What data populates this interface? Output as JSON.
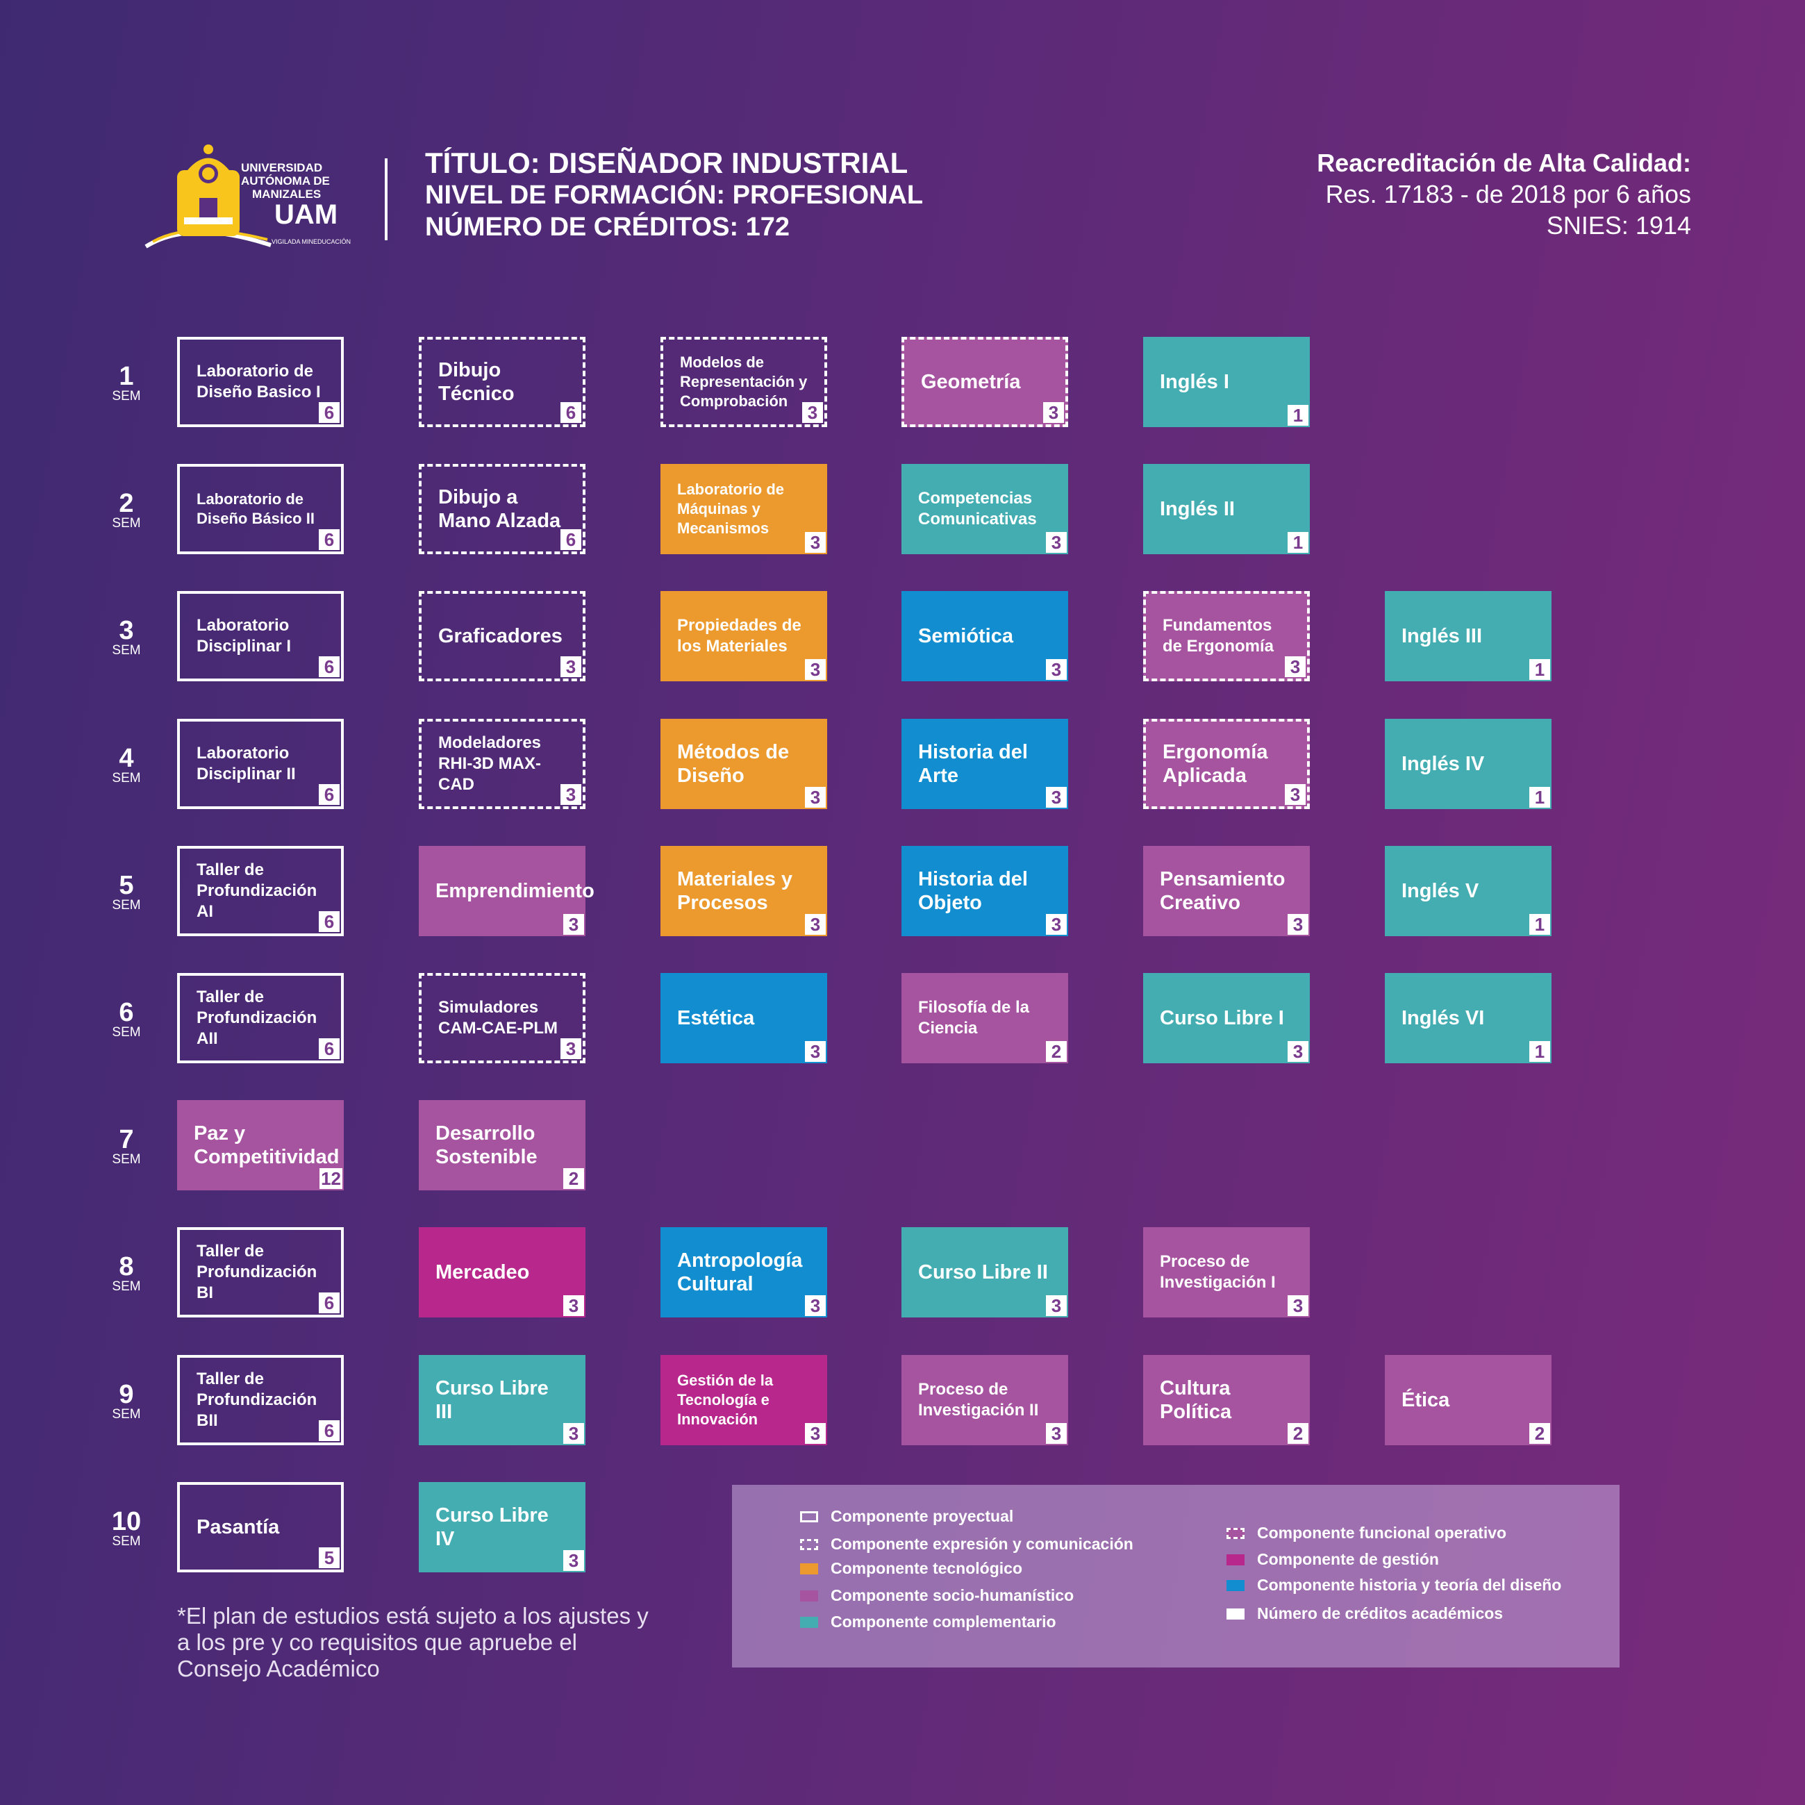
{
  "header": {
    "logo_lines": [
      "UNIVERSIDAD",
      "AUTÓNOMA DE",
      "MANIZALES",
      "UAM",
      "VIGILADA MINEDUCACIÓN"
    ],
    "title": "TÍTULO: DISEÑADOR INDUSTRIAL",
    "level": "NIVEL DE FORMACIÓN: PROFESIONAL",
    "credits": "NÚMERO DE CRÉDITOS: 172",
    "accreditation": "Reacreditación de Alta Calidad:",
    "resolution": "Res. 17183 - de 2018 por 6 años",
    "snies": "SNIES: 1914"
  },
  "sem_suffix": "SEM",
  "semesters": [
    "1",
    "2",
    "3",
    "4",
    "5",
    "6",
    "7",
    "8",
    "9",
    "10"
  ],
  "courses": [
    {
      "sem": 1,
      "col": 0,
      "name": "Laboratorio de Diseño Basico I",
      "credits": "6",
      "type": "proyectual"
    },
    {
      "sem": 1,
      "col": 1,
      "name": "Dibujo Técnico",
      "credits": "6",
      "type": "expresion"
    },
    {
      "sem": 1,
      "col": 2,
      "name": "Modelos de Representación y Comprobación",
      "credits": "3",
      "type": "expresion"
    },
    {
      "sem": 1,
      "col": 3,
      "name": "Geometría",
      "credits": "3",
      "type": "funcional"
    },
    {
      "sem": 1,
      "col": 4,
      "name": "Inglés I",
      "credits": "1",
      "type": "complementario"
    },
    {
      "sem": 2,
      "col": 0,
      "name": "Laboratorio de Diseño Básico II",
      "credits": "6",
      "type": "proyectual"
    },
    {
      "sem": 2,
      "col": 1,
      "name": "Dibujo a Mano Alzada",
      "credits": "6",
      "type": "expresion"
    },
    {
      "sem": 2,
      "col": 2,
      "name": "Laboratorio de Máquinas y Mecanismos",
      "credits": "3",
      "type": "tecnologico"
    },
    {
      "sem": 2,
      "col": 3,
      "name": "Competencias Comunicativas",
      "credits": "3",
      "type": "complementario"
    },
    {
      "sem": 2,
      "col": 4,
      "name": "Inglés II",
      "credits": "1",
      "type": "complementario"
    },
    {
      "sem": 3,
      "col": 0,
      "name": "Laboratorio Disciplinar I",
      "credits": "6",
      "type": "proyectual"
    },
    {
      "sem": 3,
      "col": 1,
      "name": "Graficadores",
      "credits": "3",
      "type": "expresion"
    },
    {
      "sem": 3,
      "col": 2,
      "name": "Propiedades de los Materiales",
      "credits": "3",
      "type": "tecnologico"
    },
    {
      "sem": 3,
      "col": 3,
      "name": "Semiótica",
      "credits": "3",
      "type": "historia"
    },
    {
      "sem": 3,
      "col": 4,
      "name": "Fundamentos de Ergonomía",
      "credits": "3",
      "type": "funcional"
    },
    {
      "sem": 3,
      "col": 5,
      "name": "Inglés III",
      "credits": "1",
      "type": "complementario"
    },
    {
      "sem": 4,
      "col": 0,
      "name": "Laboratorio Disciplinar II",
      "credits": "6",
      "type": "proyectual"
    },
    {
      "sem": 4,
      "col": 1,
      "name": "Modeladores RHI-3D MAX-CAD",
      "credits": "3",
      "type": "expresion"
    },
    {
      "sem": 4,
      "col": 2,
      "name": "Métodos de Diseño",
      "credits": "3",
      "type": "tecnologico"
    },
    {
      "sem": 4,
      "col": 3,
      "name": "Historia del Arte",
      "credits": "3",
      "type": "historia"
    },
    {
      "sem": 4,
      "col": 4,
      "name": "Ergonomía Aplicada",
      "credits": "3",
      "type": "funcional"
    },
    {
      "sem": 4,
      "col": 5,
      "name": "Inglés IV",
      "credits": "1",
      "type": "complementario"
    },
    {
      "sem": 5,
      "col": 0,
      "name": "Taller de Profundización AI",
      "credits": "6",
      "type": "proyectual"
    },
    {
      "sem": 5,
      "col": 1,
      "name": "Emprendimiento",
      "credits": "3",
      "type": "socio"
    },
    {
      "sem": 5,
      "col": 2,
      "name": "Materiales y Procesos",
      "credits": "3",
      "type": "tecnologico"
    },
    {
      "sem": 5,
      "col": 3,
      "name": "Historia del Objeto",
      "credits": "3",
      "type": "historia"
    },
    {
      "sem": 5,
      "col": 4,
      "name": "Pensamiento Creativo",
      "credits": "3",
      "type": "socio"
    },
    {
      "sem": 5,
      "col": 5,
      "name": "Inglés V",
      "credits": "1",
      "type": "complementario"
    },
    {
      "sem": 6,
      "col": 0,
      "name": "Taller de Profundización AII",
      "credits": "6",
      "type": "proyectual"
    },
    {
      "sem": 6,
      "col": 1,
      "name": "Simuladores CAM-CAE-PLM",
      "credits": "3",
      "type": "expresion"
    },
    {
      "sem": 6,
      "col": 2,
      "name": "Estética",
      "credits": "3",
      "type": "historia"
    },
    {
      "sem": 6,
      "col": 3,
      "name": "Filosofía de la Ciencia",
      "credits": "2",
      "type": "socio"
    },
    {
      "sem": 6,
      "col": 4,
      "name": "Curso Libre I",
      "credits": "3",
      "type": "complementario"
    },
    {
      "sem": 6,
      "col": 5,
      "name": "Inglés VI",
      "credits": "1",
      "type": "complementario"
    },
    {
      "sem": 7,
      "col": 0,
      "name": "Paz y Competitividad",
      "credits": "12",
      "type": "socio"
    },
    {
      "sem": 7,
      "col": 1,
      "name": "Desarrollo Sostenible",
      "credits": "2",
      "type": "socio"
    },
    {
      "sem": 8,
      "col": 0,
      "name": "Taller de Profundización BI",
      "credits": "6",
      "type": "proyectual"
    },
    {
      "sem": 8,
      "col": 1,
      "name": "Mercadeo",
      "credits": "3",
      "type": "gestion"
    },
    {
      "sem": 8,
      "col": 2,
      "name": "Antropología Cultural",
      "credits": "3",
      "type": "historia"
    },
    {
      "sem": 8,
      "col": 3,
      "name": "Curso Libre II",
      "credits": "3",
      "type": "complementario"
    },
    {
      "sem": 8,
      "col": 4,
      "name": "Proceso de Investigación I",
      "credits": "3",
      "type": "socio"
    },
    {
      "sem": 9,
      "col": 0,
      "name": "Taller de Profundización BII",
      "credits": "6",
      "type": "proyectual"
    },
    {
      "sem": 9,
      "col": 1,
      "name": "Curso Libre III",
      "credits": "3",
      "type": "complementario"
    },
    {
      "sem": 9,
      "col": 2,
      "name": "Gestión de la Tecnología e Innovación",
      "credits": "3",
      "type": "gestion"
    },
    {
      "sem": 9,
      "col": 3,
      "name": "Proceso de Investigación II",
      "credits": "3",
      "type": "socio"
    },
    {
      "sem": 9,
      "col": 4,
      "name": "Cultura Política",
      "credits": "2",
      "type": "socio"
    },
    {
      "sem": 9,
      "col": 5,
      "name": "Ética",
      "credits": "2",
      "type": "socio"
    },
    {
      "sem": 10,
      "col": 0,
      "name": "Pasantía",
      "credits": "5",
      "type": "proyectual"
    },
    {
      "sem": 10,
      "col": 1,
      "name": "Curso Libre IV",
      "credits": "3",
      "type": "complementario"
    }
  ],
  "note": "*El plan de estudios está sujeto a los ajustes y a los pre y co requisitos que apruebe el Consejo Académico",
  "legend": [
    {
      "label": "Componente proyectual",
      "swatch": "proyectual"
    },
    {
      "label": "Componente expresión y comunicación",
      "swatch": "expresion"
    },
    {
      "label": "Componente tecnológico",
      "swatch": "tecnologico"
    },
    {
      "label": "Componente socio-humanístico",
      "swatch": "socio"
    },
    {
      "label": "Componente complementario",
      "swatch": "complementario"
    },
    {
      "label": "Componente funcional operativo",
      "swatch": "funcional"
    },
    {
      "label": "Componente de gestión",
      "swatch": "gestion"
    },
    {
      "label": "Componente historia y teoría del diseño",
      "swatch": "historia"
    },
    {
      "label": "Número de créditos académicos",
      "swatch": "creditos"
    }
  ],
  "colors": {
    "tecnologico": "#ec9a2d",
    "socio": "#a654a0",
    "complementario": "#43adb2",
    "gestion": "#b8278b",
    "historia": "#128ed0",
    "logo_yellow": "#f7c51b"
  }
}
